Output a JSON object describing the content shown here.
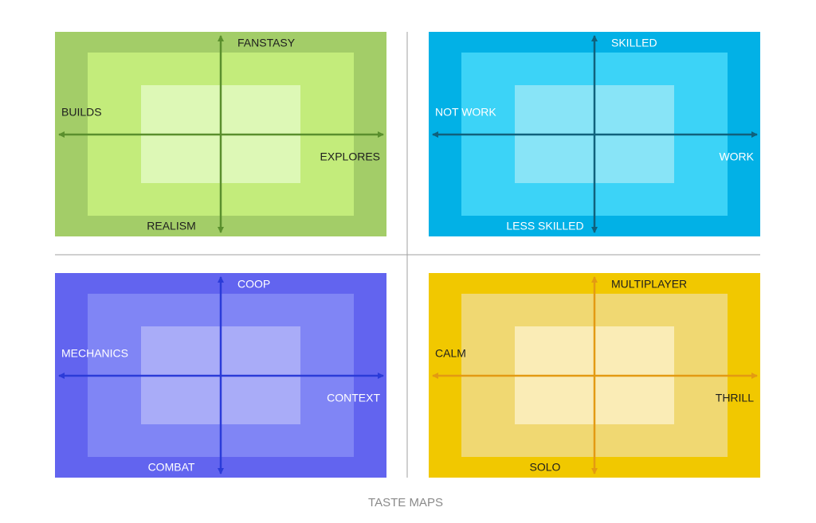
{
  "panels": [
    {
      "top": "FANSTASY",
      "left": "BUILDS",
      "right": "EXPLORES",
      "bottom": "REALISM"
    },
    {
      "top": "SKILLED",
      "left": "NOT WORK",
      "right": "WORK",
      "bottom": "LESS SKILLED"
    },
    {
      "top": "COOP",
      "left": "MECHANICS",
      "right": "CONTEXT",
      "bottom": "COMBAT"
    },
    {
      "top": "MULTIPLAYER",
      "left": "CALM",
      "right": "THRILL",
      "bottom": "SOLO"
    }
  ],
  "caption": "TASTE MAPS"
}
